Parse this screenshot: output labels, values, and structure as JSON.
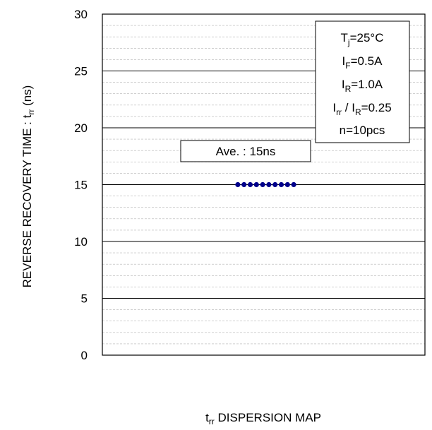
{
  "chart_data": {
    "type": "scatter",
    "title": "",
    "xlabel": {
      "main": "t",
      "sub": "rr",
      "rest": " DISPERSION MAP"
    },
    "ylabel": {
      "main": "REVERSE RECOVERY TIME : t",
      "sub": "rr",
      "rest": " (ns)"
    },
    "ylim": [
      0,
      30
    ],
    "yticks": [
      0,
      5,
      10,
      15,
      20,
      25,
      30
    ],
    "minor_step": 1,
    "grid": true,
    "series": [
      {
        "values": [
          15,
          15,
          15,
          15,
          15,
          15,
          15,
          15,
          15,
          15
        ],
        "color": "#00008b"
      }
    ],
    "mean_value": 15,
    "annotations": {
      "average": "Ave. : 15ns",
      "conditions": [
        {
          "main": "T",
          "sub": "j",
          "rest": "=25°C"
        },
        {
          "main": "I",
          "sub": "F",
          "rest": "=0.5A"
        },
        {
          "main": "I",
          "sub": "R",
          "rest": "=1.0A"
        },
        {
          "main": "I",
          "sub": "rr",
          "mid": " / I",
          "sub2": "R",
          "rest": "=0.25"
        },
        {
          "main": "n=10pcs"
        }
      ]
    }
  }
}
